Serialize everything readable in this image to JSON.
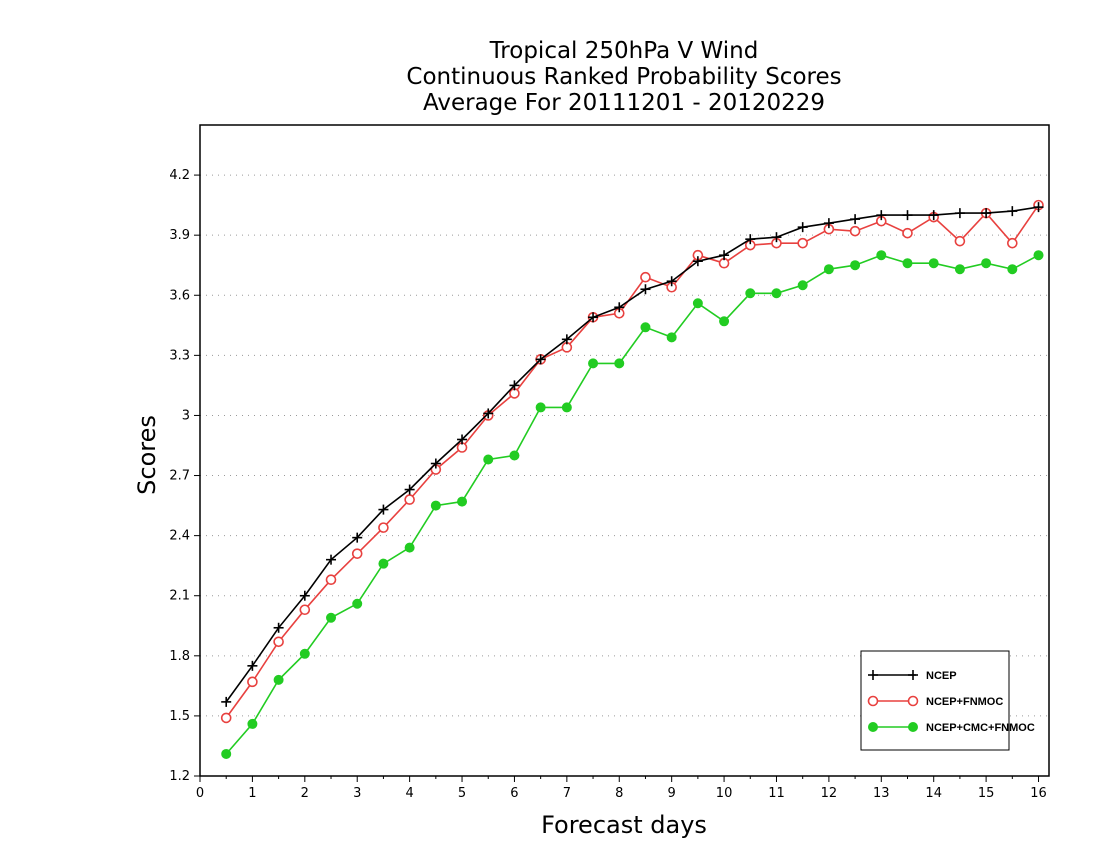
{
  "chart_data": {
    "type": "line",
    "title_lines": [
      "Tropical 250hPa V Wind",
      "Continuous Ranked Probability Scores",
      "Average For 20111201 - 20120229"
    ],
    "xlabel": "Forecast days",
    "ylabel": "Scores",
    "xlim": [
      0,
      16.2
    ],
    "ylim": [
      1.2,
      4.45
    ],
    "xticks": [
      0,
      1,
      2,
      3,
      4,
      5,
      6,
      7,
      8,
      9,
      10,
      11,
      12,
      13,
      14,
      15,
      16
    ],
    "xtick_labels": [
      "0",
      "1",
      "2",
      "3",
      "4",
      "5",
      "6",
      "7",
      "8",
      "9",
      "10",
      "11",
      "12",
      "13",
      "14",
      "15",
      "16"
    ],
    "yticks": [
      1.2,
      1.5,
      1.8,
      2.1,
      2.4,
      2.7,
      3,
      3.3,
      3.6,
      3.9,
      4.2
    ],
    "ytick_labels": [
      "1.2",
      "1.5",
      "1.8",
      "2.1",
      "2.4",
      "2.7",
      "3",
      "3.3",
      "3.6",
      "3.9",
      "4.2"
    ],
    "grid": true,
    "legend_position": "bottom-right",
    "x": [
      0.5,
      1,
      1.5,
      2,
      2.5,
      3,
      3.5,
      4,
      4.5,
      5,
      5.5,
      6,
      6.5,
      7,
      7.5,
      8,
      8.5,
      9,
      9.5,
      10,
      10.5,
      11,
      11.5,
      12,
      12.5,
      13,
      13.5,
      14,
      14.5,
      15,
      15.5,
      16
    ],
    "series": [
      {
        "name": "NCEP",
        "color": "#000000",
        "marker": "plus",
        "values": [
          1.57,
          1.75,
          1.94,
          2.1,
          2.28,
          2.39,
          2.53,
          2.63,
          2.76,
          2.88,
          3.01,
          3.15,
          3.28,
          3.38,
          3.49,
          3.54,
          3.63,
          3.67,
          3.77,
          3.8,
          3.88,
          3.89,
          3.94,
          3.96,
          3.98,
          4.0,
          4.0,
          4.0,
          4.01,
          4.01,
          4.02,
          4.04
        ]
      },
      {
        "name": "NCEP+FNMOC",
        "color": "#e8413f",
        "marker": "open-circle",
        "values": [
          1.49,
          1.67,
          1.87,
          2.03,
          2.18,
          2.31,
          2.44,
          2.58,
          2.73,
          2.84,
          3.0,
          3.11,
          3.28,
          3.34,
          3.49,
          3.51,
          3.69,
          3.64,
          3.8,
          3.76,
          3.85,
          3.86,
          3.86,
          3.93,
          3.92,
          3.97,
          3.91,
          3.99,
          3.87,
          4.01,
          3.86,
          4.05
        ]
      },
      {
        "name": "NCEP+CMC+FNMOC",
        "color": "#22cc22",
        "marker": "filled-circle",
        "values": [
          1.31,
          1.46,
          1.68,
          1.81,
          1.99,
          2.06,
          2.26,
          2.34,
          2.55,
          2.57,
          2.78,
          2.8,
          3.04,
          3.04,
          3.26,
          3.26,
          3.44,
          3.39,
          3.56,
          3.47,
          3.61,
          3.61,
          3.65,
          3.73,
          3.75,
          3.8,
          3.76,
          3.76,
          3.73,
          3.76,
          3.73,
          3.8
        ]
      }
    ]
  }
}
